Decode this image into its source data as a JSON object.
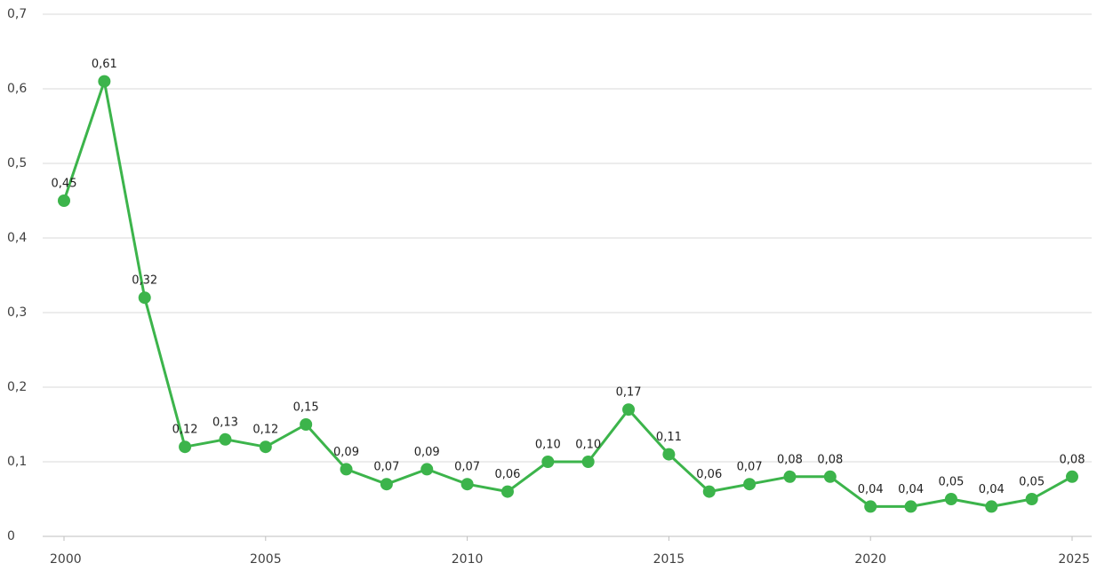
{
  "chart_data": {
    "type": "line",
    "x": [
      2000,
      2001,
      2002,
      2003,
      2004,
      2005,
      2006,
      2007,
      2008,
      2009,
      2010,
      2011,
      2012,
      2013,
      2014,
      2015,
      2016,
      2017,
      2018,
      2019,
      2020,
      2021,
      2022,
      2023,
      2024,
      2025
    ],
    "series": [
      {
        "color": "#3cb44b",
        "values": [
          0.45,
          0.61,
          0.32,
          0.12,
          0.13,
          0.12,
          0.15,
          0.09,
          0.07,
          0.09,
          0.07,
          0.06,
          0.1,
          0.1,
          0.17,
          0.11,
          0.06,
          0.07,
          0.08,
          0.08,
          0.04,
          0.04,
          0.05,
          0.04,
          0.05,
          0.08
        ],
        "value_labels": [
          "0,45",
          "0,61",
          "0,32",
          "0,12",
          "0,13",
          "0,12",
          "0,15",
          "0,09",
          "0,07",
          "0,09",
          "0,07",
          "0,06",
          "0,10",
          "0,10",
          "0,17",
          "0,11",
          "0,06",
          "0,07",
          "0,08",
          "0,08",
          "0,04",
          "0,04",
          "0,05",
          "0,04",
          "0,05",
          "0,08"
        ]
      }
    ],
    "xlim": [
      2000,
      2025
    ],
    "xticks": [
      2000,
      2005,
      2010,
      2015,
      2020,
      2025
    ],
    "ylim": [
      0,
      0.7
    ],
    "yticks": [
      0,
      {
        "value": 0.1,
        "label": "0,1"
      },
      {
        "value": 0.2,
        "label": "0,2"
      },
      {
        "value": 0.3,
        "label": "0,3"
      },
      {
        "value": 0.4,
        "label": "0,4"
      },
      {
        "value": 0.5,
        "label": "0,5"
      },
      {
        "value": 0.6,
        "label": "0,6"
      },
      {
        "value": 0.7,
        "label": "0,7"
      }
    ],
    "grid": true
  }
}
